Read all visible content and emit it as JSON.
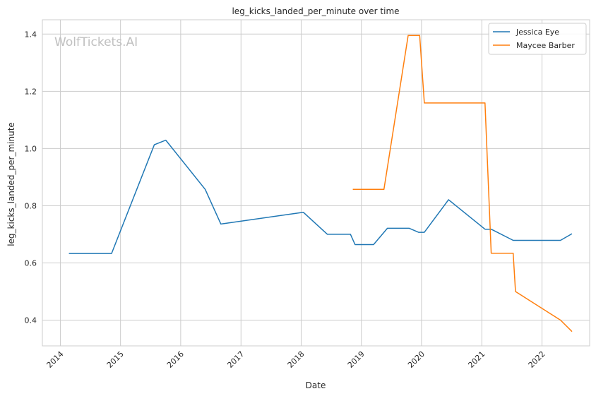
{
  "chart_data": {
    "type": "line",
    "title": "leg_kicks_landed_per_minute over time",
    "xlabel": "Date",
    "ylabel": "leg_kicks_landed_per_minute",
    "x_tick_labels": [
      "2014",
      "2015",
      "2016",
      "2017",
      "2018",
      "2019",
      "2020",
      "2021",
      "2022"
    ],
    "y_tick_labels": [
      "0.4",
      "0.6",
      "0.8",
      "1.0",
      "1.2",
      "1.4"
    ],
    "xlim": [
      "2013-09-14",
      "2022-10-17"
    ],
    "ylim": [
      0.31,
      1.45
    ],
    "grid": true,
    "legend_position": "top-right",
    "watermark": "WolfTickets.AI",
    "series": [
      {
        "name": "Jessica Eye",
        "color": "#1f77b4",
        "points": [
          [
            "2014-02-22",
            0.633
          ],
          [
            "2014-11-08",
            0.633
          ],
          [
            "2015-07-25",
            1.013
          ],
          [
            "2015-10-03",
            1.029
          ],
          [
            "2016-05-29",
            0.857
          ],
          [
            "2016-09-01",
            0.736
          ],
          [
            "2018-01-14",
            0.777
          ],
          [
            "2018-06-09",
            0.7
          ],
          [
            "2018-10-27",
            0.7
          ],
          [
            "2018-11-24",
            0.664
          ],
          [
            "2019-03-16",
            0.664
          ],
          [
            "2019-06-08",
            0.721
          ],
          [
            "2019-10-19",
            0.721
          ],
          [
            "2019-12-14",
            0.707
          ],
          [
            "2020-01-18",
            0.707
          ],
          [
            "2020-06-13",
            0.821
          ],
          [
            "2021-01-20",
            0.718
          ],
          [
            "2021-02-27",
            0.718
          ],
          [
            "2021-07-10",
            0.679
          ],
          [
            "2022-04-23",
            0.679
          ],
          [
            "2022-07-02",
            0.702
          ]
        ]
      },
      {
        "name": "Maycee Barber",
        "color": "#ff7f0e",
        "points": [
          [
            "2018-11-10",
            0.857
          ],
          [
            "2019-05-18",
            0.857
          ],
          [
            "2019-10-12",
            1.395
          ],
          [
            "2019-12-21",
            1.395
          ],
          [
            "2020-01-18",
            1.159
          ],
          [
            "2021-01-20",
            1.159
          ],
          [
            "2021-02-27",
            0.634
          ],
          [
            "2021-07-10",
            0.634
          ],
          [
            "2021-07-24",
            0.5
          ],
          [
            "2022-04-23",
            0.4
          ],
          [
            "2022-07-02",
            0.36
          ]
        ]
      }
    ]
  }
}
